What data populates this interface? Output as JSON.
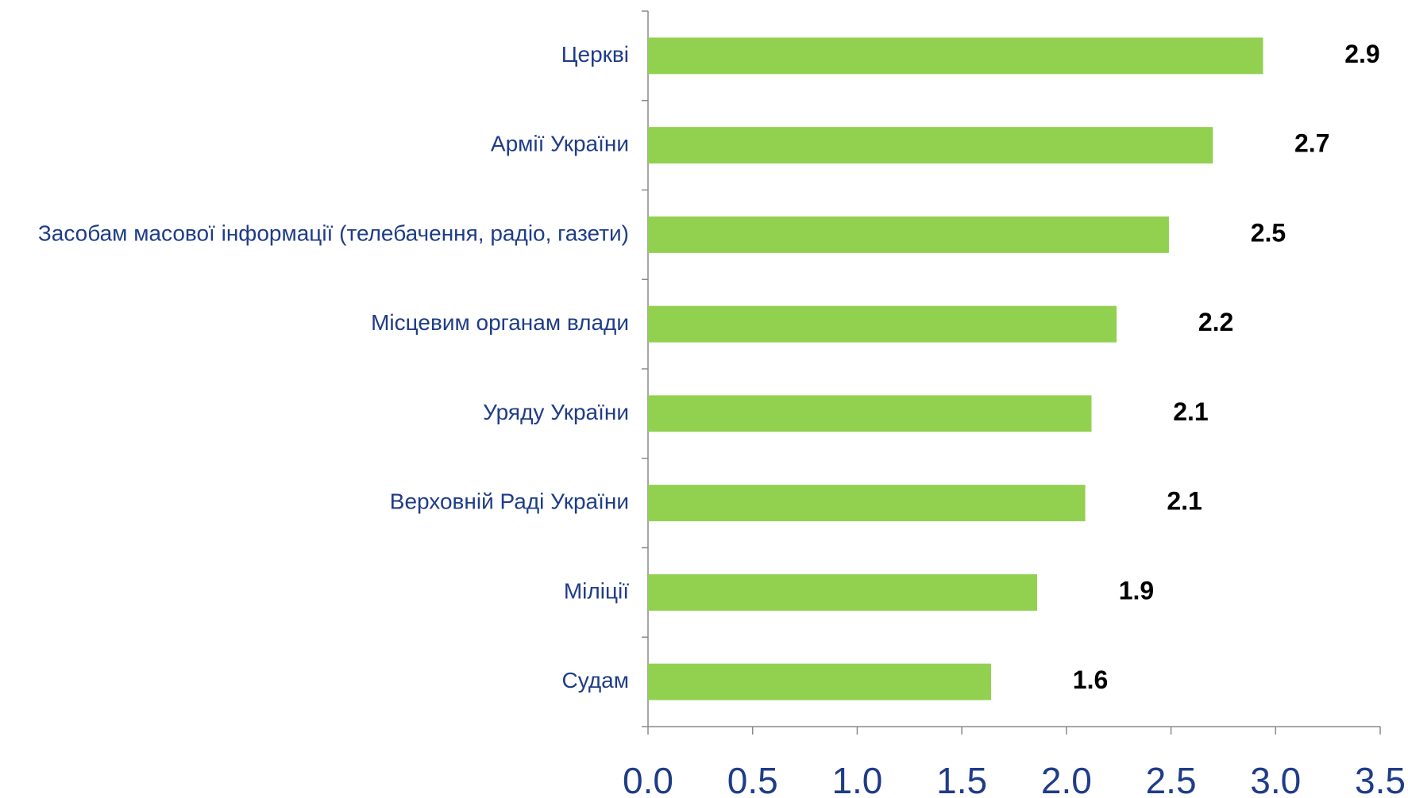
{
  "chart_data": {
    "type": "barh",
    "categories": [
      "Церкві",
      "Армії України",
      "Засобам масової інформації (телебачення, радіо, газети)",
      "Місцевим органам влади",
      "Уряду України",
      "Верховній Раді України",
      "Міліції",
      "Судам"
    ],
    "values": [
      2.94,
      2.7,
      2.49,
      2.24,
      2.12,
      2.09,
      1.86,
      1.64
    ],
    "value_labels": [
      "2.9",
      "2.7",
      "2.5",
      "2.2",
      "2.1",
      "2.1",
      "1.9",
      "1.6"
    ],
    "color": "#92d050",
    "xlim": [
      0,
      3.5
    ],
    "xticks": [
      {
        "value": 0,
        "label": "0.0"
      },
      0.5,
      {
        "value": 1,
        "label": "1.0"
      },
      1.5,
      {
        "value": 2,
        "label": "2.0"
      },
      2.5,
      {
        "value": 3,
        "label": "3.0"
      },
      3.5
    ]
  }
}
